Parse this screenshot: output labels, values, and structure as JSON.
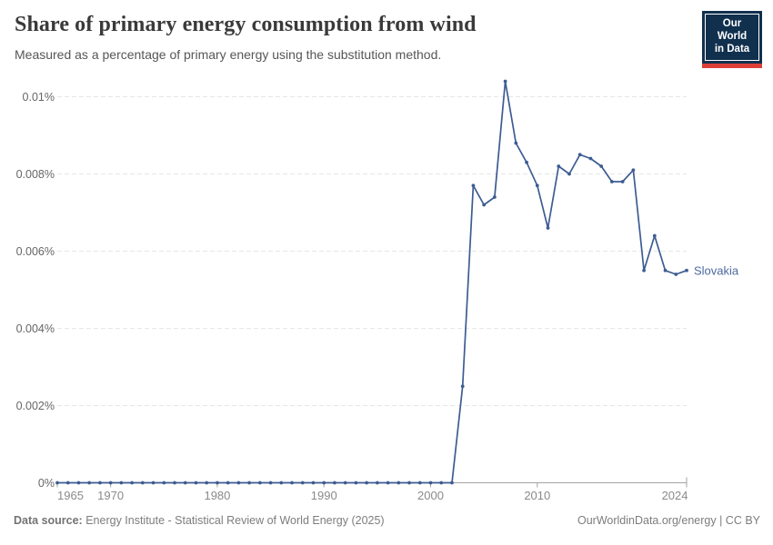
{
  "header": {
    "title": "Share of primary energy consumption from wind",
    "subtitle": "Measured as a percentage of primary energy using the substitution method.",
    "logo": {
      "line1": "Our World",
      "line2": "in Data"
    }
  },
  "footer": {
    "source_label": "Data source:",
    "source_text": " Energy Institute - Statistical Review of World Energy (2025)",
    "attribution": "OurWorldinData.org/energy | CC BY"
  },
  "colors": {
    "line": "#3d5c92",
    "entity_label": "#4c6a9f",
    "grid": "#e6e6e6",
    "axis": "#a3a3a3",
    "x_tick_label": "#8a8a8a",
    "y_tick_label": "#666666",
    "logo_bg": "#10304e",
    "logo_red": "#dc3f38"
  },
  "chart_data": {
    "type": "line",
    "title": "Share of primary energy consumption from wind",
    "subtitle": "Measured as a percentage of primary energy using the substitution method.",
    "xlabel": "",
    "ylabel": "",
    "unit": "%",
    "xlim": [
      1965,
      2024
    ],
    "ylim": [
      0,
      0.0105
    ],
    "grid": "horizontal-dashed",
    "legend_position": "end-of-line-label",
    "x_ticks": [
      {
        "value": 1965,
        "label": "1965",
        "align": "start"
      },
      {
        "value": 1970,
        "label": "1970",
        "align": "middle"
      },
      {
        "value": 1980,
        "label": "1980",
        "align": "middle"
      },
      {
        "value": 1990,
        "label": "1990",
        "align": "middle"
      },
      {
        "value": 2000,
        "label": "2000",
        "align": "middle"
      },
      {
        "value": 2010,
        "label": "2010",
        "align": "middle"
      },
      {
        "value": 2024,
        "label": "2024",
        "align": "end"
      }
    ],
    "y_ticks": [
      {
        "value": 0,
        "label": "0%"
      },
      {
        "value": 0.002,
        "label": "0.002%"
      },
      {
        "value": 0.004,
        "label": "0.004%"
      },
      {
        "value": 0.006,
        "label": "0.006%"
      },
      {
        "value": 0.008,
        "label": "0.008%"
      },
      {
        "value": 0.01,
        "label": "0.01%"
      }
    ],
    "series": [
      {
        "name": "Slovakia",
        "points": [
          [
            1965,
            0
          ],
          [
            1966,
            0
          ],
          [
            1967,
            0
          ],
          [
            1968,
            0
          ],
          [
            1969,
            0
          ],
          [
            1970,
            0
          ],
          [
            1971,
            0
          ],
          [
            1972,
            0
          ],
          [
            1973,
            0
          ],
          [
            1974,
            0
          ],
          [
            1975,
            0
          ],
          [
            1976,
            0
          ],
          [
            1977,
            0
          ],
          [
            1978,
            0
          ],
          [
            1979,
            0
          ],
          [
            1980,
            0
          ],
          [
            1981,
            0
          ],
          [
            1982,
            0
          ],
          [
            1983,
            0
          ],
          [
            1984,
            0
          ],
          [
            1985,
            0
          ],
          [
            1986,
            0
          ],
          [
            1987,
            0
          ],
          [
            1988,
            0
          ],
          [
            1989,
            0
          ],
          [
            1990,
            0
          ],
          [
            1991,
            0
          ],
          [
            1992,
            0
          ],
          [
            1993,
            0
          ],
          [
            1994,
            0
          ],
          [
            1995,
            0
          ],
          [
            1996,
            0
          ],
          [
            1997,
            0
          ],
          [
            1998,
            0
          ],
          [
            1999,
            0
          ],
          [
            2000,
            0
          ],
          [
            2001,
            0
          ],
          [
            2002,
            0
          ],
          [
            2003,
            0.0025
          ],
          [
            2004,
            0.0077
          ],
          [
            2005,
            0.0072
          ],
          [
            2006,
            0.0074
          ],
          [
            2007,
            0.0104
          ],
          [
            2008,
            0.0088
          ],
          [
            2009,
            0.0083
          ],
          [
            2010,
            0.0077
          ],
          [
            2011,
            0.0066
          ],
          [
            2012,
            0.0082
          ],
          [
            2013,
            0.008
          ],
          [
            2014,
            0.0085
          ],
          [
            2015,
            0.0084
          ],
          [
            2016,
            0.0082
          ],
          [
            2017,
            0.0078
          ],
          [
            2018,
            0.0078
          ],
          [
            2019,
            0.0081
          ],
          [
            2020,
            0.0055
          ],
          [
            2021,
            0.0064
          ],
          [
            2022,
            0.0055
          ],
          [
            2023,
            0.0054
          ],
          [
            2024,
            0.0055
          ]
        ]
      }
    ]
  }
}
